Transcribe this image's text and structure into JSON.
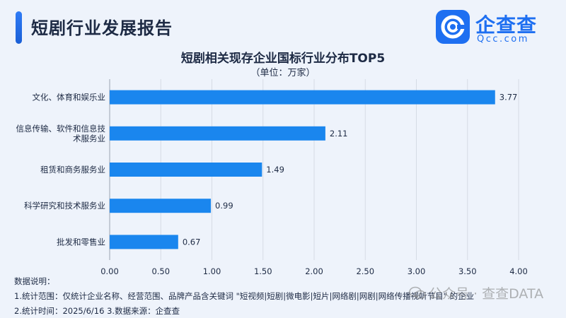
{
  "header": {
    "title": "短剧行业发展报告"
  },
  "brand": {
    "name": "企查查",
    "url": "Qcc.com"
  },
  "chart_data": {
    "type": "bar",
    "orientation": "horizontal",
    "title": "短剧相关现存企业国标行业分布TOP5",
    "subtitle": "（单位：万家）",
    "categories": [
      "文化、体育和娱乐业",
      "信息传输、软件和信息技术服务业",
      "租赁和商务服务业",
      "科学研究和技术服务业",
      "批发和零售业"
    ],
    "category_lines": [
      [
        "文化、体育和娱乐业"
      ],
      [
        "信息传输、软件和信息技",
        "术服务业"
      ],
      [
        "租赁和商务服务业"
      ],
      [
        "科学研究和技术服务业"
      ],
      [
        "批发和零售业"
      ]
    ],
    "values": [
      3.77,
      2.11,
      1.49,
      0.99,
      0.67
    ],
    "xlim": [
      0,
      4.0
    ],
    "xticks": [
      "0.00",
      "0.50",
      "1.00",
      "1.50",
      "2.00",
      "2.50",
      "3.00",
      "3.50",
      "4.00"
    ],
    "grid": "vertical",
    "bar_color": "#1a86ee"
  },
  "notes": {
    "heading": "数据说明：",
    "line1": "1.统计范围：仅统计企业名称、经营范围、品牌产品含关键词 \"短视频|短剧|微电影|短片|网络剧|网剧|网络传播视听节目\" 的企业",
    "line2": "2.统计时间：2025/6/16  3.数据来源：企查查"
  },
  "watermark": {
    "text": "公众号 · 查查DATA"
  }
}
